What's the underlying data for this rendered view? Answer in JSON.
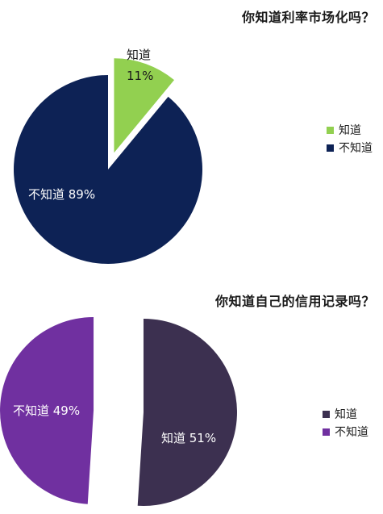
{
  "chart_data": [
    {
      "type": "pie",
      "title": "你知道利率市场化吗？",
      "categories": [
        "知道",
        "不知道"
      ],
      "values": [
        11,
        89
      ],
      "unit": "%",
      "colors": [
        "#92d050",
        "#0d2255"
      ],
      "label_colors": [
        "#1a1a1a",
        "#ffffff"
      ],
      "slice_labels": [
        {
          "name": "知道",
          "value": "11%"
        },
        {
          "name": "不知道",
          "value": "89%"
        }
      ],
      "legend": {
        "position": "right",
        "entries": [
          "知道",
          "不知道"
        ]
      },
      "start_angle_deg": 0,
      "exploded": [
        true,
        false
      ]
    },
    {
      "type": "pie",
      "title": "你知道自己的信用记录吗？",
      "categories": [
        "知道",
        "不知道"
      ],
      "values": [
        51,
        49
      ],
      "unit": "%",
      "colors": [
        "#3c3050",
        "#7030a0"
      ],
      "label_colors": [
        "#ffffff",
        "#ffffff"
      ],
      "slice_labels": [
        {
          "name": "知道",
          "value": "51%"
        },
        {
          "name": "不知道",
          "value": "49%"
        }
      ],
      "legend": {
        "position": "right",
        "entries": [
          "知道",
          "不知道"
        ]
      },
      "start_angle_deg": 0,
      "exploded": [
        true,
        true
      ]
    }
  ]
}
